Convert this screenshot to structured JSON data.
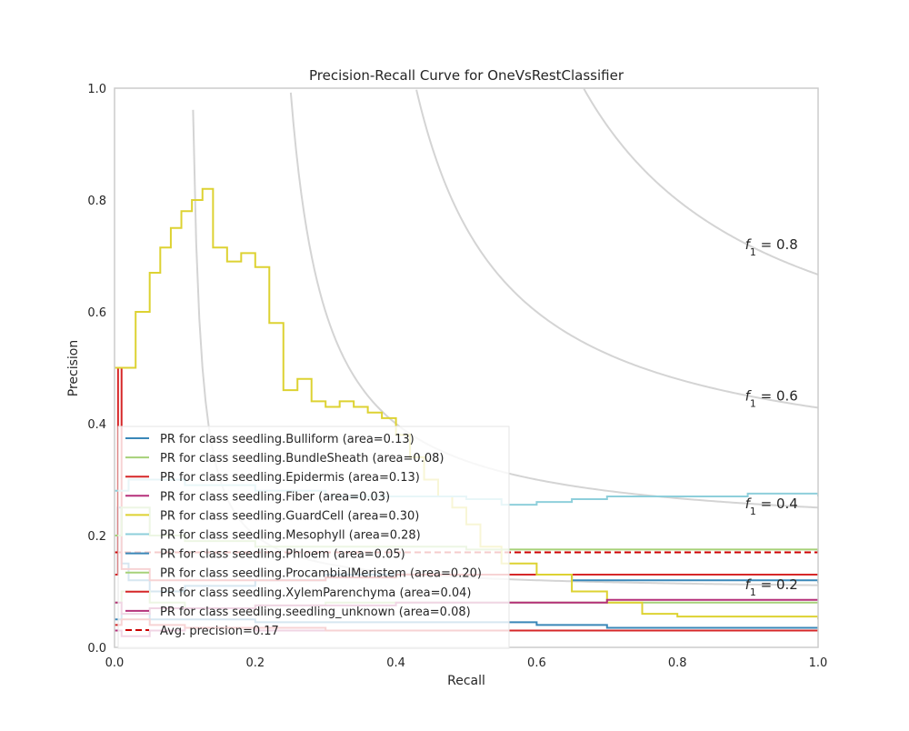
{
  "chart_data": {
    "type": "line",
    "title": "Precision-Recall Curve for OneVsRestClassifier",
    "xlabel": "Recall",
    "ylabel": "Precision",
    "xlim": [
      0.0,
      1.0
    ],
    "ylim": [
      0.0,
      1.0
    ],
    "x_ticks": [
      "0.0",
      "0.2",
      "0.4",
      "0.6",
      "0.8",
      "1.0"
    ],
    "y_ticks": [
      "0.0",
      "0.2",
      "0.4",
      "0.6",
      "0.8",
      "1.0"
    ],
    "grid": false,
    "legend_position": "lower-left",
    "iso_f1_curves": [
      {
        "f1": 0.2,
        "label_prefix": "f",
        "label_sub": "1",
        "label_suffix": " = 0.2"
      },
      {
        "f1": 0.4,
        "label_prefix": "f",
        "label_sub": "1",
        "label_suffix": " = 0.4"
      },
      {
        "f1": 0.6,
        "label_prefix": "f",
        "label_sub": "1",
        "label_suffix": " = 0.6"
      },
      {
        "f1": 0.8,
        "label_prefix": "f",
        "label_sub": "1",
        "label_suffix": " = 0.8"
      }
    ],
    "series": [
      {
        "name": "PR for class seedling.Bulliform (area=0.13)",
        "color": "#3a87b8",
        "x": [
          0.0,
          0.005,
          0.01,
          0.02,
          0.05,
          0.1,
          0.2,
          0.3,
          0.4,
          0.5,
          0.6,
          0.65,
          0.7,
          0.8,
          0.9,
          1.0
        ],
        "y": [
          0.13,
          0.25,
          0.15,
          0.12,
          0.1,
          0.11,
          0.12,
          0.13,
          0.13,
          0.13,
          0.13,
          0.12,
          0.12,
          0.12,
          0.12,
          0.115
        ]
      },
      {
        "name": "PR for class seedling.BundleSheath (area=0.08)",
        "color": "#a6d178",
        "x": [
          0.0,
          0.01,
          0.05,
          0.1,
          0.2,
          0.3,
          0.4,
          0.5,
          0.6,
          0.7,
          0.8,
          0.9,
          1.0
        ],
        "y": [
          0.08,
          0.1,
          0.08,
          0.07,
          0.075,
          0.08,
          0.08,
          0.08,
          0.08,
          0.08,
          0.08,
          0.08,
          0.08
        ]
      },
      {
        "name": "PR for class seedling.Epidermis (area=0.13)",
        "color": "#d62728",
        "x": [
          0.0,
          0.005,
          0.01,
          0.05,
          0.1,
          0.2,
          0.3,
          0.4,
          0.5,
          0.6,
          0.7,
          0.8,
          0.9,
          1.0
        ],
        "y": [
          0.13,
          0.5,
          0.14,
          0.12,
          0.12,
          0.12,
          0.125,
          0.13,
          0.13,
          0.13,
          0.13,
          0.13,
          0.13,
          0.13
        ]
      },
      {
        "name": "PR for class seedling.Fiber (area=0.03)",
        "color": "#b5307a",
        "x": [
          0.0,
          0.01,
          0.05,
          0.1,
          0.2,
          0.3,
          0.4,
          0.5,
          0.6,
          0.7,
          0.8,
          0.9,
          1.0
        ],
        "y": [
          0.03,
          0.02,
          0.03,
          0.035,
          0.03,
          0.03,
          0.03,
          0.03,
          0.03,
          0.03,
          0.03,
          0.03,
          0.03
        ]
      },
      {
        "name": "PR for class seedling.GuardCell (area=0.30)",
        "color": "#ddd232",
        "x": [
          0.0,
          0.01,
          0.03,
          0.05,
          0.065,
          0.08,
          0.095,
          0.11,
          0.125,
          0.14,
          0.16,
          0.18,
          0.2,
          0.22,
          0.24,
          0.26,
          0.28,
          0.3,
          0.32,
          0.34,
          0.36,
          0.38,
          0.4,
          0.42,
          0.44,
          0.46,
          0.48,
          0.5,
          0.52,
          0.55,
          0.6,
          0.65,
          0.7,
          0.75,
          0.8,
          0.9,
          1.0
        ],
        "y": [
          0.5,
          0.5,
          0.6,
          0.67,
          0.715,
          0.75,
          0.78,
          0.8,
          0.82,
          0.715,
          0.69,
          0.705,
          0.68,
          0.58,
          0.46,
          0.48,
          0.44,
          0.43,
          0.44,
          0.43,
          0.42,
          0.41,
          0.38,
          0.34,
          0.3,
          0.27,
          0.25,
          0.22,
          0.18,
          0.15,
          0.13,
          0.1,
          0.08,
          0.06,
          0.055,
          0.055,
          0.05
        ]
      },
      {
        "name": "PR for class seedling.Mesophyll (area=0.28)",
        "color": "#8ecfdb",
        "x": [
          0.0,
          0.02,
          0.05,
          0.1,
          0.2,
          0.3,
          0.4,
          0.5,
          0.55,
          0.6,
          0.65,
          0.7,
          0.8,
          0.9,
          1.0
        ],
        "y": [
          0.28,
          0.3,
          0.3,
          0.29,
          0.28,
          0.27,
          0.27,
          0.265,
          0.255,
          0.26,
          0.265,
          0.27,
          0.27,
          0.275,
          0.27
        ]
      },
      {
        "name": "PR for class seedling.Phloem (area=0.05)",
        "color": "#3a87b8",
        "x": [
          0.0,
          0.01,
          0.05,
          0.1,
          0.2,
          0.3,
          0.4,
          0.5,
          0.6,
          0.7,
          0.8,
          0.9,
          1.0
        ],
        "y": [
          0.05,
          0.06,
          0.05,
          0.05,
          0.045,
          0.045,
          0.045,
          0.045,
          0.04,
          0.035,
          0.035,
          0.035,
          0.035
        ]
      },
      {
        "name": "PR for class seedling.ProcambialMeristem (area=0.20)",
        "color": "#a6d178",
        "x": [
          0.0,
          0.01,
          0.05,
          0.1,
          0.2,
          0.3,
          0.4,
          0.5,
          0.6,
          0.7,
          0.8,
          0.9,
          1.0
        ],
        "y": [
          0.2,
          0.25,
          0.2,
          0.19,
          0.18,
          0.18,
          0.18,
          0.175,
          0.175,
          0.175,
          0.175,
          0.175,
          0.17
        ]
      },
      {
        "name": "PR for class seedling.XylemParenchyma (area=0.04)",
        "color": "#d62728",
        "x": [
          0.0,
          0.01,
          0.05,
          0.1,
          0.2,
          0.3,
          0.4,
          0.5,
          0.6,
          0.7,
          0.8,
          0.9,
          1.0
        ],
        "y": [
          0.04,
          0.05,
          0.04,
          0.035,
          0.035,
          0.03,
          0.03,
          0.03,
          0.03,
          0.03,
          0.03,
          0.03,
          0.03
        ]
      },
      {
        "name": "PR for class seedling.seedling_unknown (area=0.08)",
        "color": "#b5307a",
        "x": [
          0.0,
          0.01,
          0.05,
          0.1,
          0.2,
          0.3,
          0.4,
          0.5,
          0.6,
          0.7,
          0.8,
          0.9,
          1.0
        ],
        "y": [
          0.08,
          0.06,
          0.07,
          0.07,
          0.075,
          0.075,
          0.08,
          0.08,
          0.08,
          0.085,
          0.085,
          0.085,
          0.085
        ]
      }
    ],
    "avg_precision": {
      "name": "Avg. precision=0.17",
      "value": 0.17,
      "color": "#cc0000"
    }
  }
}
